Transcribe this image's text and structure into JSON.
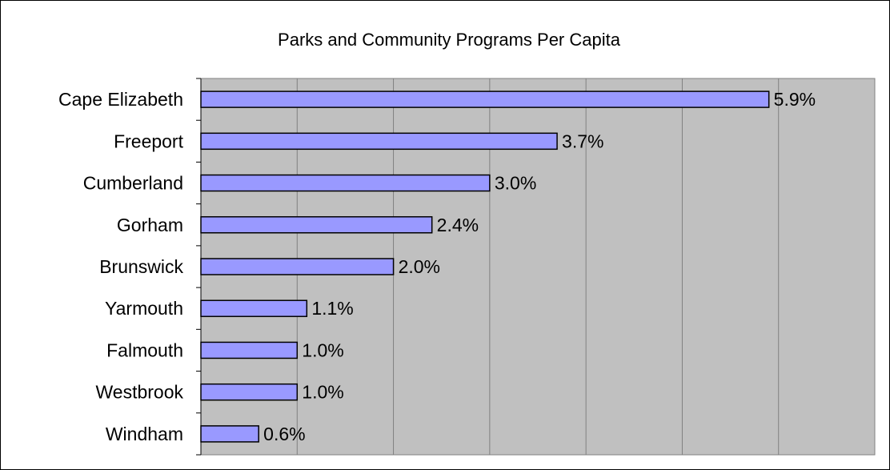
{
  "chart_data": {
    "type": "bar",
    "orientation": "horizontal",
    "title": "Parks and Community Programs Per Capita",
    "xlabel": "",
    "ylabel": "",
    "categories": [
      "Cape Elizabeth",
      "Freeport",
      "Cumberland",
      "Gorham",
      "Brunswick",
      "Yarmouth",
      "Falmouth",
      "Westbrook",
      "Windham"
    ],
    "values": [
      5.9,
      3.7,
      3.0,
      2.4,
      2.0,
      1.1,
      1.0,
      1.0,
      0.6
    ],
    "value_labels": [
      "5.9%",
      "3.7%",
      "3.0%",
      "2.4%",
      "2.0%",
      "1.1%",
      "1.0%",
      "1.0%",
      "0.6%"
    ],
    "xlim": [
      0,
      7
    ],
    "grid": true,
    "legend": "none",
    "colors": {
      "bar_fill": "#9999ff",
      "plot_background": "#c0c0c0",
      "gridline": "#808080"
    }
  }
}
